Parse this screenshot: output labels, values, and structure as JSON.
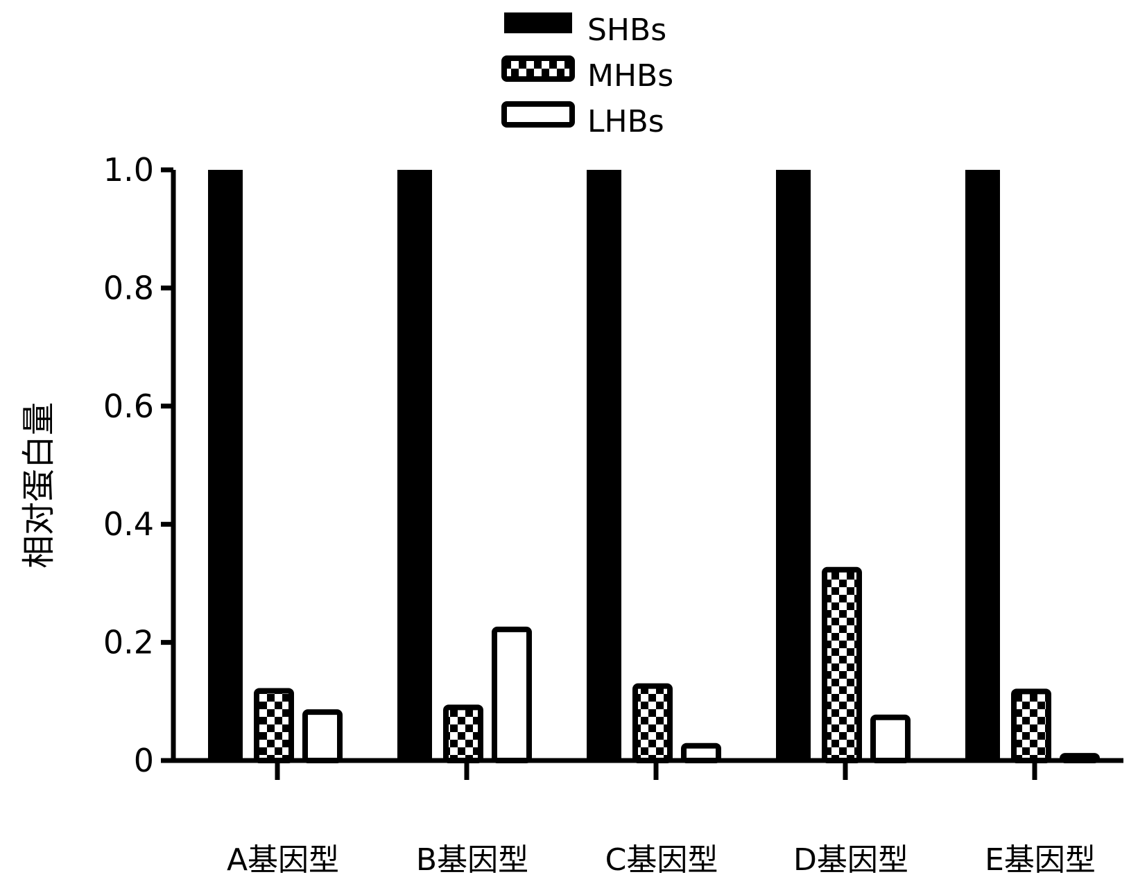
{
  "chart_data": {
    "type": "bar",
    "title": "",
    "xlabel": "",
    "ylabel": "相对蛋白量",
    "categories": [
      "A基因型",
      "B基因型",
      "C基因型",
      "D基因型",
      "E基因型"
    ],
    "series": [
      {
        "name": "SHBs",
        "values": [
          1.0,
          1.0,
          1.0,
          1.0,
          1.0
        ],
        "fill": "solid"
      },
      {
        "name": "MHBs",
        "values": [
          0.118,
          0.09,
          0.126,
          0.323,
          0.117
        ],
        "fill": "checker"
      },
      {
        "name": "LHBs",
        "values": [
          0.082,
          0.222,
          0.025,
          0.073,
          0.008
        ],
        "fill": "empty"
      }
    ],
    "ylim": [
      0,
      1.0
    ],
    "yticks": [
      0,
      0.2,
      0.4,
      0.6,
      0.8,
      1.0
    ],
    "ytick_labels": [
      "0",
      "0.2",
      "0.4",
      "0.6",
      "0.8",
      "1.0"
    ],
    "grid": false,
    "legend_position": "top-center",
    "colors": {
      "bar": "#000000",
      "background": "#ffffff"
    }
  }
}
